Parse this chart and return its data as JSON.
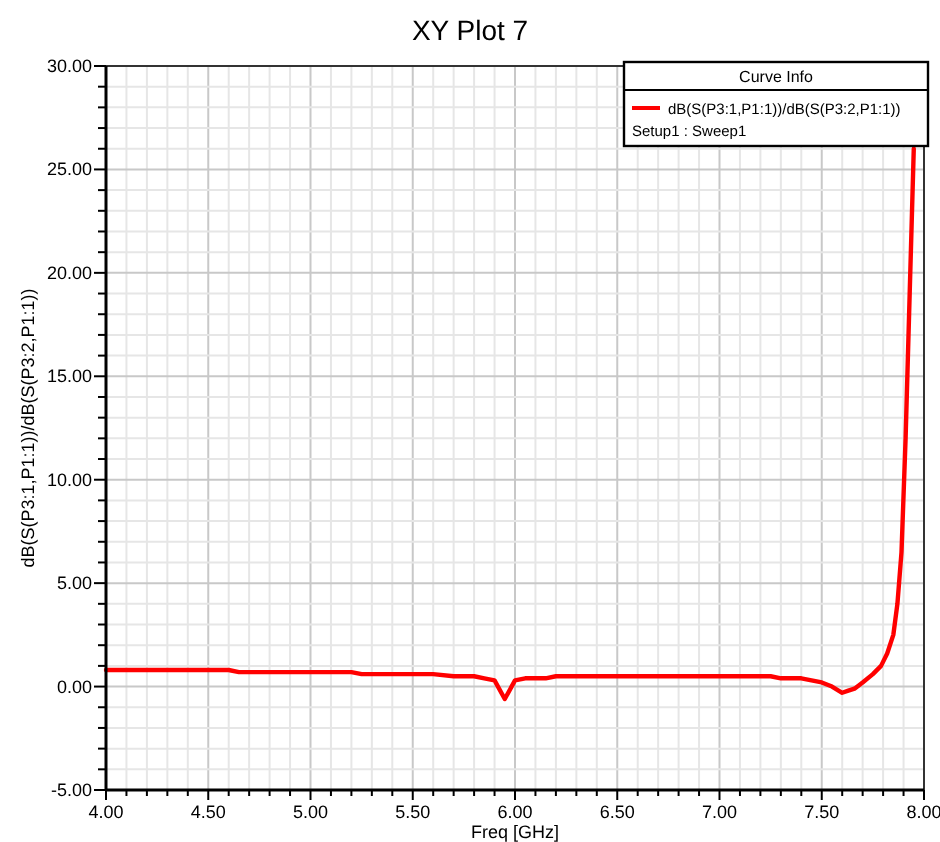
{
  "chart_data": {
    "type": "line",
    "title": "XY Plot 7",
    "xlabel": "Freq [GHz]",
    "ylabel": "dB(S(P3:1,P1:1))/dB(S(P3:2,P1:1))",
    "legend_title": "Curve Info",
    "annotations": [
      "Setup1 : Sweep1"
    ],
    "x": [
      4.0,
      4.3,
      4.6,
      4.65,
      5.2,
      5.25,
      5.55,
      5.6,
      5.7,
      5.8,
      5.85,
      5.9,
      5.95,
      6.0,
      6.05,
      6.1,
      6.15,
      6.2,
      6.3,
      6.35,
      7.25,
      7.3,
      7.4,
      7.5,
      7.55,
      7.6,
      7.63,
      7.66,
      7.7,
      7.75,
      7.79,
      7.82,
      7.85,
      7.87,
      7.89,
      7.91,
      7.93,
      7.95
    ],
    "series": [
      {
        "name": "dB(S(P3:1,P1:1))/dB(S(P3:2,P1:1))",
        "color": "#ff0000",
        "values": [
          0.8,
          0.8,
          0.8,
          0.7,
          0.7,
          0.6,
          0.6,
          0.6,
          0.5,
          0.5,
          0.4,
          0.3,
          -0.6,
          0.3,
          0.4,
          0.4,
          0.4,
          0.5,
          0.5,
          0.5,
          0.5,
          0.4,
          0.4,
          0.2,
          0,
          -0.3,
          -0.2,
          -0.1,
          0.2,
          0.6,
          1.0,
          1.6,
          2.5,
          4,
          6.5,
          12,
          19,
          26
        ]
      }
    ],
    "xlim": [
      4,
      8
    ],
    "ylim": [
      -5,
      30
    ],
    "xticks": [
      {
        "value": 4,
        "label": "4.00"
      },
      {
        "value": 4.1,
        "label": null
      },
      {
        "value": 4.2,
        "label": null
      },
      {
        "value": 4.3,
        "label": null
      },
      {
        "value": 4.4,
        "label": null
      },
      {
        "value": 4.5,
        "label": "4.50"
      },
      {
        "value": 4.6,
        "label": null
      },
      {
        "value": 4.7,
        "label": null
      },
      {
        "value": 4.8,
        "label": null
      },
      {
        "value": 4.9,
        "label": null
      },
      {
        "value": 5,
        "label": "5.00"
      },
      {
        "value": 5.1,
        "label": null
      },
      {
        "value": 5.2,
        "label": null
      },
      {
        "value": 5.3,
        "label": null
      },
      {
        "value": 5.4,
        "label": null
      },
      {
        "value": 5.5,
        "label": "5.50"
      },
      {
        "value": 5.6,
        "label": null
      },
      {
        "value": 5.7,
        "label": null
      },
      {
        "value": 5.8,
        "label": null
      },
      {
        "value": 5.9,
        "label": null
      },
      {
        "value": 6,
        "label": "6.00"
      },
      {
        "value": 6.1,
        "label": null
      },
      {
        "value": 6.2,
        "label": null
      },
      {
        "value": 6.3,
        "label": null
      },
      {
        "value": 6.4,
        "label": null
      },
      {
        "value": 6.5,
        "label": "6.50"
      },
      {
        "value": 6.6,
        "label": null
      },
      {
        "value": 6.7,
        "label": null
      },
      {
        "value": 6.8,
        "label": null
      },
      {
        "value": 6.9,
        "label": null
      },
      {
        "value": 7,
        "label": "7.00"
      },
      {
        "value": 7.1,
        "label": null
      },
      {
        "value": 7.2,
        "label": null
      },
      {
        "value": 7.3,
        "label": null
      },
      {
        "value": 7.4,
        "label": null
      },
      {
        "value": 7.5,
        "label": "7.50"
      },
      {
        "value": 7.6,
        "label": null
      },
      {
        "value": 7.7,
        "label": null
      },
      {
        "value": 7.8,
        "label": null
      },
      {
        "value": 7.9,
        "label": null
      },
      {
        "value": 8,
        "label": "8.00"
      }
    ],
    "yticks": [
      {
        "value": -5,
        "label": "-5.00"
      },
      {
        "value": -4,
        "label": null
      },
      {
        "value": -3,
        "label": null
      },
      {
        "value": -2,
        "label": null
      },
      {
        "value": -1,
        "label": null
      },
      {
        "value": 0,
        "label": "0.00"
      },
      {
        "value": 1,
        "label": null
      },
      {
        "value": 2,
        "label": null
      },
      {
        "value": 3,
        "label": null
      },
      {
        "value": 4,
        "label": null
      },
      {
        "value": 5,
        "label": "5.00"
      },
      {
        "value": 6,
        "label": null
      },
      {
        "value": 7,
        "label": null
      },
      {
        "value": 8,
        "label": null
      },
      {
        "value": 9,
        "label": null
      },
      {
        "value": 10,
        "label": "10.00"
      },
      {
        "value": 11,
        "label": null
      },
      {
        "value": 12,
        "label": null
      },
      {
        "value": 13,
        "label": null
      },
      {
        "value": 14,
        "label": null
      },
      {
        "value": 15,
        "label": "15.00"
      },
      {
        "value": 16,
        "label": null
      },
      {
        "value": 17,
        "label": null
      },
      {
        "value": 18,
        "label": null
      },
      {
        "value": 19,
        "label": null
      },
      {
        "value": 20,
        "label": "20.00"
      },
      {
        "value": 21,
        "label": null
      },
      {
        "value": 22,
        "label": null
      },
      {
        "value": 23,
        "label": null
      },
      {
        "value": 24,
        "label": null
      },
      {
        "value": 25,
        "label": "25.00"
      },
      {
        "value": 26,
        "label": null
      },
      {
        "value": 27,
        "label": null
      },
      {
        "value": 28,
        "label": null
      },
      {
        "value": 29,
        "label": null
      },
      {
        "value": 30,
        "label": "30.00"
      }
    ],
    "grid": true,
    "legend": "top right",
    "marker": "none",
    "line_style": "solid"
  }
}
